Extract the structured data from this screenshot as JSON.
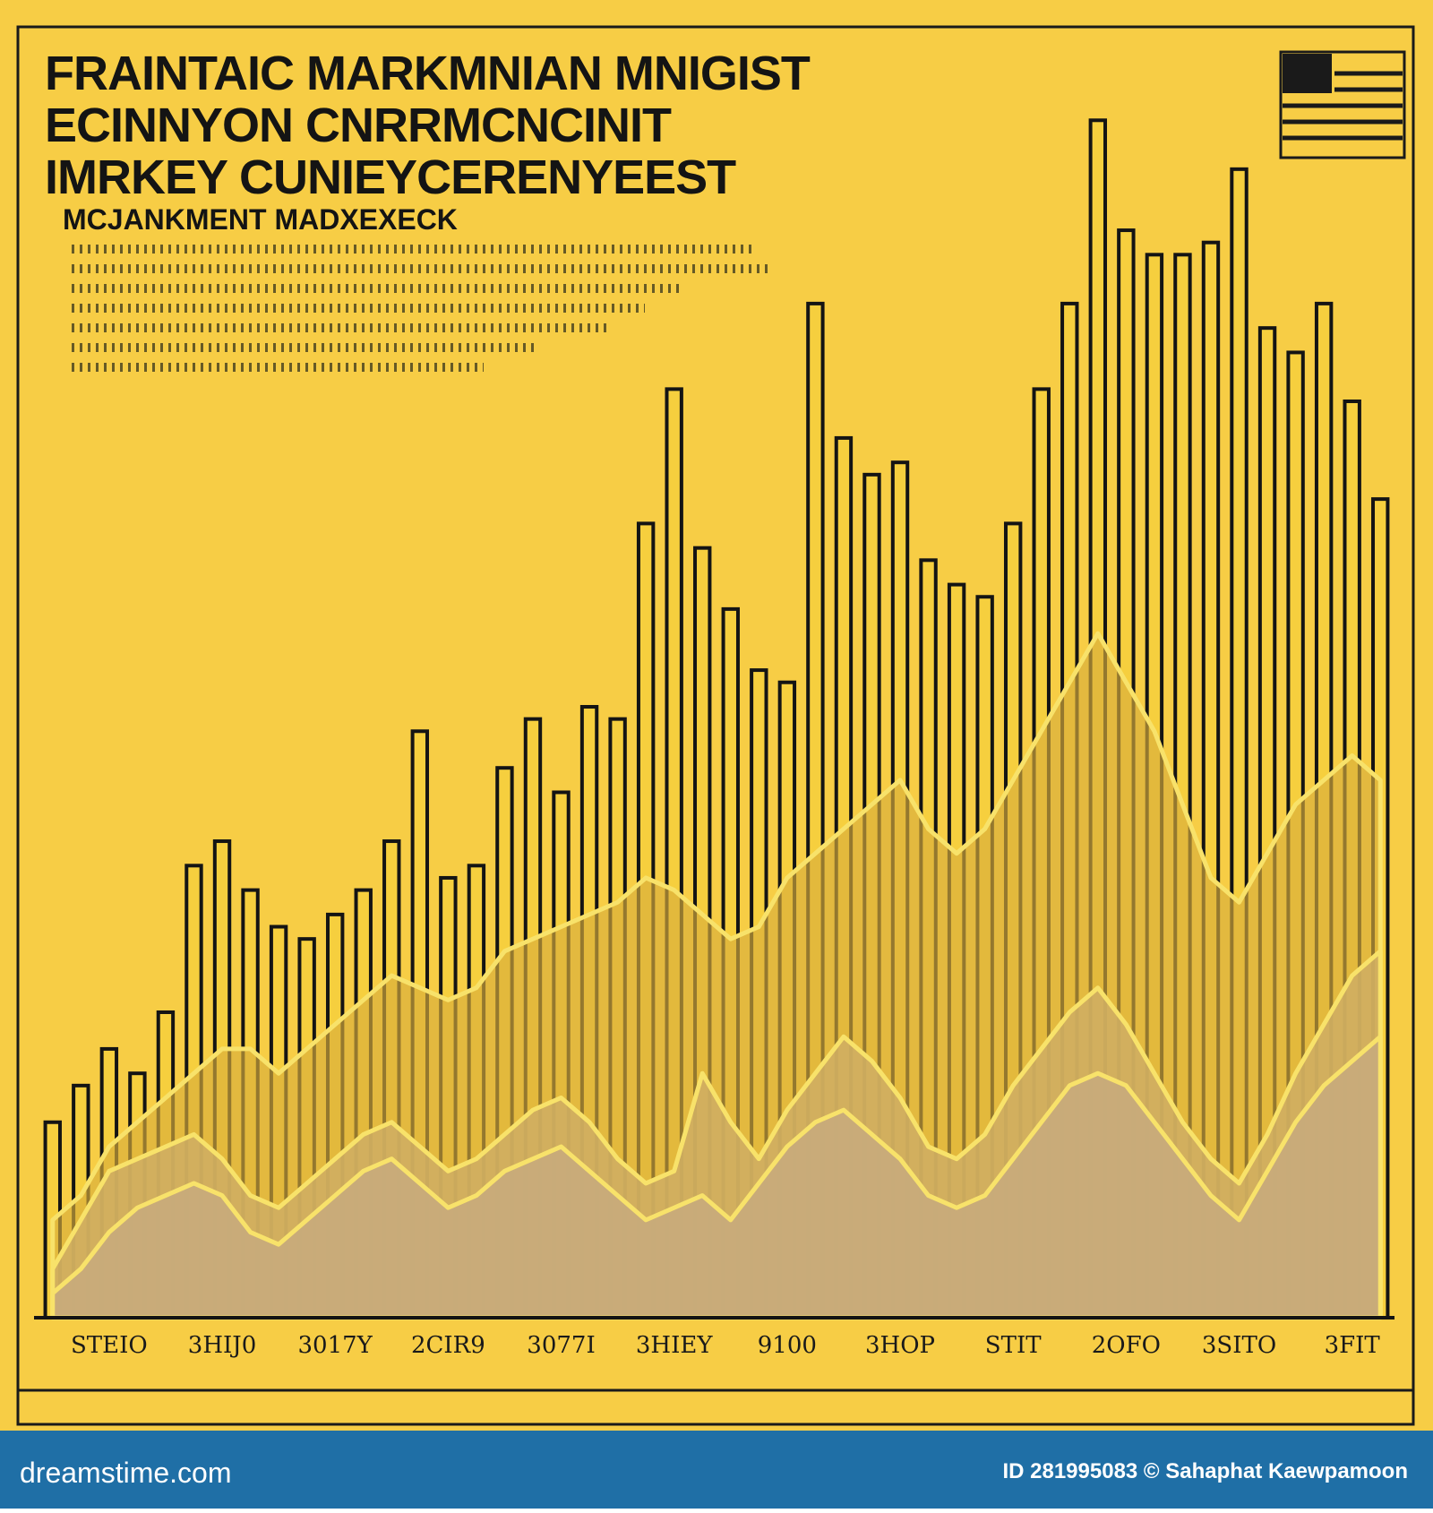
{
  "chart_data": {
    "type": "bar",
    "title": [
      "FRAINTAIC  MARKMNIAN  MNIGIST",
      "ECINNYON  CNRRMCNCINIT",
      "IMRKEY CUNIEYCERENYEEST"
    ],
    "subtitle": "MCJANKMENT   MADXEXECK",
    "categories": [
      null,
      null,
      "STEIO",
      null,
      null,
      null,
      "3HIJ0",
      null,
      null,
      null,
      "3017Y",
      null,
      null,
      null,
      "2CIR9",
      null,
      null,
      null,
      "3077I",
      null,
      null,
      null,
      "3HIEY",
      null,
      null,
      null,
      "9100",
      null,
      null,
      null,
      "3HOP",
      null,
      null,
      null,
      "STIT",
      null,
      null,
      null,
      "2OFO",
      null,
      null,
      null,
      "3SITO",
      null,
      null,
      null,
      "3FIT",
      null
    ],
    "values": [
      16,
      19,
      22,
      20,
      25,
      37,
      39,
      35,
      32,
      31,
      33,
      35,
      39,
      48,
      36,
      37,
      45,
      49,
      43,
      50,
      49,
      65,
      76,
      63,
      58,
      53,
      52,
      83,
      72,
      69,
      70,
      62,
      60,
      59,
      65,
      76,
      83,
      98,
      89,
      87,
      87,
      88,
      94,
      81,
      79,
      83,
      75,
      67
    ],
    "color": "#f6cf3e",
    "areas": [
      {
        "color": "#d9ae3c",
        "values": [
          8,
          10,
          14,
          16,
          18,
          20,
          22,
          22,
          20,
          22,
          24,
          26,
          28,
          27,
          26,
          27,
          30,
          31,
          32,
          33,
          34,
          36,
          35,
          33,
          31,
          32,
          36,
          38,
          40,
          42,
          44,
          40,
          38,
          40,
          44,
          48,
          52,
          56,
          52,
          48,
          42,
          36,
          34,
          38,
          42,
          44,
          46,
          44
        ]
      },
      {
        "color": "#cfae62",
        "values": [
          4,
          8,
          12,
          13,
          14,
          15,
          13,
          10,
          9,
          11,
          13,
          15,
          16,
          14,
          12,
          13,
          15,
          17,
          18,
          16,
          13,
          11,
          12,
          20,
          16,
          13,
          17,
          20,
          23,
          21,
          18,
          14,
          13,
          15,
          19,
          22,
          25,
          27,
          24,
          20,
          16,
          13,
          11,
          15,
          20,
          24,
          28,
          30
        ]
      },
      {
        "color": "#c8ab7c",
        "values": [
          2,
          4,
          7,
          9,
          10,
          11,
          10,
          7,
          6,
          8,
          10,
          12,
          13,
          11,
          9,
          10,
          12,
          13,
          14,
          12,
          10,
          8,
          9,
          10,
          8,
          11,
          14,
          16,
          17,
          15,
          13,
          10,
          9,
          10,
          13,
          16,
          19,
          20,
          19,
          16,
          13,
          10,
          8,
          12,
          16,
          19,
          21,
          23
        ]
      }
    ],
    "ylim": [
      0,
      100
    ]
  },
  "footer": {
    "site": "dreamstime.com",
    "credit": "ID 281995083 © Sahaphat Kaewpamoon"
  }
}
